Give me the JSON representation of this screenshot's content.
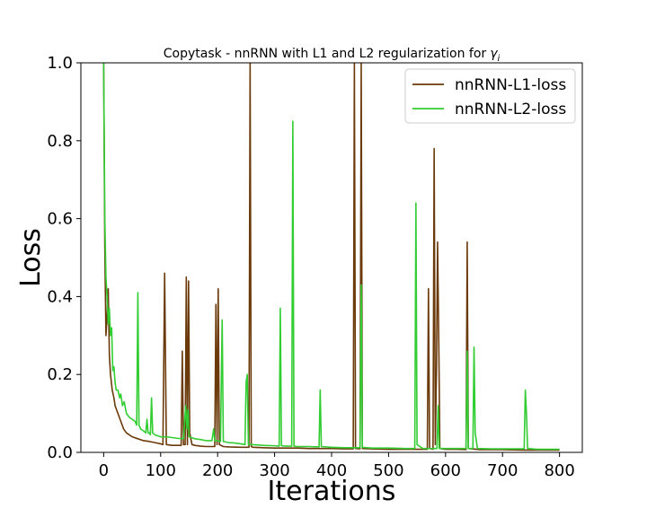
{
  "chart_data": {
    "type": "line",
    "title": "Copytask - nnRNN with L1 and L2 regularization for",
    "title_symbol": "γ",
    "title_subscript": "i",
    "xlabel": "Iterations",
    "ylabel": "Loss",
    "xlim": [
      -40,
      840
    ],
    "ylim": [
      0.0,
      1.0
    ],
    "x_ticks": [
      0,
      100,
      200,
      300,
      400,
      500,
      600,
      700,
      800
    ],
    "y_ticks": [
      0.0,
      0.2,
      0.4,
      0.6,
      0.8,
      1.0
    ],
    "x_tick_labels": [
      "0",
      "100",
      "200",
      "300",
      "400",
      "500",
      "600",
      "700",
      "800"
    ],
    "y_tick_labels": [
      "0.0",
      "0.2",
      "0.4",
      "0.6",
      "0.8",
      "1.0"
    ],
    "grid": false,
    "legend_position": "top-right",
    "series": [
      {
        "name": "nnRNN-L1-loss",
        "color": "#6b3a0a",
        "points": [
          [
            0,
            1.0
          ],
          [
            2,
            0.53
          ],
          [
            4,
            0.3
          ],
          [
            6,
            0.35
          ],
          [
            8,
            0.42
          ],
          [
            10,
            0.25
          ],
          [
            12,
            0.2
          ],
          [
            15,
            0.16
          ],
          [
            18,
            0.14
          ],
          [
            20,
            0.12
          ],
          [
            25,
            0.1
          ],
          [
            30,
            0.08
          ],
          [
            35,
            0.06
          ],
          [
            40,
            0.05
          ],
          [
            50,
            0.04
          ],
          [
            60,
            0.035
          ],
          [
            70,
            0.03
          ],
          [
            80,
            0.028
          ],
          [
            90,
            0.025
          ],
          [
            100,
            0.022
          ],
          [
            104,
            0.02
          ],
          [
            107,
            0.46
          ],
          [
            110,
            0.02
          ],
          [
            120,
            0.018
          ],
          [
            130,
            0.018
          ],
          [
            136,
            0.018
          ],
          [
            138,
            0.26
          ],
          [
            140,
            0.02
          ],
          [
            143,
            0.02
          ],
          [
            145,
            0.45
          ],
          [
            147,
            0.02
          ],
          [
            149,
            0.44
          ],
          [
            151,
            0.05
          ],
          [
            155,
            0.02
          ],
          [
            160,
            0.018
          ],
          [
            170,
            0.016
          ],
          [
            180,
            0.015
          ],
          [
            190,
            0.015
          ],
          [
            195,
            0.015
          ],
          [
            197,
            0.38
          ],
          [
            199,
            0.02
          ],
          [
            201,
            0.42
          ],
          [
            203,
            0.02
          ],
          [
            210,
            0.015
          ],
          [
            220,
            0.014
          ],
          [
            240,
            0.013
          ],
          [
            250,
            0.013
          ],
          [
            255,
            0.013
          ],
          [
            257,
            1.0
          ],
          [
            259,
            0.015
          ],
          [
            262,
            0.013
          ],
          [
            280,
            0.012
          ],
          [
            300,
            0.011
          ],
          [
            320,
            0.011
          ],
          [
            340,
            0.011
          ],
          [
            360,
            0.01
          ],
          [
            380,
            0.01
          ],
          [
            400,
            0.01
          ],
          [
            420,
            0.009
          ],
          [
            438,
            0.009
          ],
          [
            440,
            1.0
          ],
          [
            442,
            0.01
          ],
          [
            450,
            0.009
          ],
          [
            452,
            1.0
          ],
          [
            454,
            0.01
          ],
          [
            470,
            0.009
          ],
          [
            500,
            0.008
          ],
          [
            530,
            0.008
          ],
          [
            560,
            0.008
          ],
          [
            568,
            0.008
          ],
          [
            570,
            0.42
          ],
          [
            572,
            0.01
          ],
          [
            578,
            0.008
          ],
          [
            580,
            0.78
          ],
          [
            582,
            0.02
          ],
          [
            584,
            0.2
          ],
          [
            586,
            0.54
          ],
          [
            588,
            0.3
          ],
          [
            590,
            0.01
          ],
          [
            600,
            0.008
          ],
          [
            620,
            0.008
          ],
          [
            636,
            0.007
          ],
          [
            638,
            0.54
          ],
          [
            640,
            0.01
          ],
          [
            660,
            0.007
          ],
          [
            700,
            0.007
          ],
          [
            740,
            0.006
          ],
          [
            760,
            0.006
          ],
          [
            800,
            0.006
          ]
        ]
      },
      {
        "name": "nnRNN-L2-loss",
        "color": "#32cd32",
        "points": [
          [
            0,
            1.0
          ],
          [
            2,
            0.6
          ],
          [
            4,
            0.45
          ],
          [
            6,
            0.4
          ],
          [
            8,
            0.33
          ],
          [
            10,
            0.37
          ],
          [
            12,
            0.3
          ],
          [
            14,
            0.32
          ],
          [
            16,
            0.21
          ],
          [
            18,
            0.22
          ],
          [
            20,
            0.18
          ],
          [
            22,
            0.16
          ],
          [
            25,
            0.16
          ],
          [
            28,
            0.14
          ],
          [
            30,
            0.15
          ],
          [
            33,
            0.12
          ],
          [
            36,
            0.13
          ],
          [
            40,
            0.1
          ],
          [
            45,
            0.09
          ],
          [
            50,
            0.085
          ],
          [
            55,
            0.08
          ],
          [
            58,
            0.07
          ],
          [
            60,
            0.41
          ],
          [
            62,
            0.07
          ],
          [
            65,
            0.06
          ],
          [
            70,
            0.055
          ],
          [
            74,
            0.05
          ],
          [
            76,
            0.085
          ],
          [
            78,
            0.05
          ],
          [
            80,
            0.05
          ],
          [
            82,
            0.045
          ],
          [
            84,
            0.14
          ],
          [
            86,
            0.05
          ],
          [
            90,
            0.045
          ],
          [
            100,
            0.04
          ],
          [
            110,
            0.04
          ],
          [
            120,
            0.038
          ],
          [
            130,
            0.036
          ],
          [
            140,
            0.035
          ],
          [
            144,
            0.12
          ],
          [
            146,
            0.06
          ],
          [
            148,
            0.11
          ],
          [
            150,
            0.04
          ],
          [
            160,
            0.035
          ],
          [
            170,
            0.033
          ],
          [
            180,
            0.03
          ],
          [
            190,
            0.03
          ],
          [
            193,
            0.06
          ],
          [
            195,
            0.03
          ],
          [
            200,
            0.03
          ],
          [
            205,
            0.028
          ],
          [
            208,
            0.34
          ],
          [
            210,
            0.028
          ],
          [
            220,
            0.025
          ],
          [
            230,
            0.024
          ],
          [
            240,
            0.022
          ],
          [
            248,
            0.02
          ],
          [
            250,
            0.18
          ],
          [
            252,
            0.2
          ],
          [
            254,
            0.02
          ],
          [
            260,
            0.02
          ],
          [
            280,
            0.018
          ],
          [
            300,
            0.017
          ],
          [
            308,
            0.016
          ],
          [
            310,
            0.37
          ],
          [
            312,
            0.017
          ],
          [
            320,
            0.016
          ],
          [
            330,
            0.016
          ],
          [
            332,
            0.85
          ],
          [
            334,
            0.016
          ],
          [
            340,
            0.015
          ],
          [
            360,
            0.015
          ],
          [
            378,
            0.014
          ],
          [
            380,
            0.16
          ],
          [
            382,
            0.015
          ],
          [
            400,
            0.013
          ],
          [
            420,
            0.012
          ],
          [
            440,
            0.012
          ],
          [
            450,
            0.012
          ],
          [
            452,
            0.43
          ],
          [
            454,
            0.013
          ],
          [
            470,
            0.011
          ],
          [
            500,
            0.011
          ],
          [
            530,
            0.01
          ],
          [
            546,
            0.01
          ],
          [
            548,
            0.64
          ],
          [
            550,
            0.02
          ],
          [
            560,
            0.01
          ],
          [
            580,
            0.01
          ],
          [
            585,
            0.01
          ],
          [
            587,
            0.12
          ],
          [
            589,
            0.01
          ],
          [
            600,
            0.01
          ],
          [
            620,
            0.01
          ],
          [
            636,
            0.01
          ],
          [
            638,
            0.26
          ],
          [
            640,
            0.01
          ],
          [
            648,
            0.01
          ],
          [
            650,
            0.27
          ],
          [
            652,
            0.05
          ],
          [
            656,
            0.01
          ],
          [
            680,
            0.009
          ],
          [
            700,
            0.009
          ],
          [
            720,
            0.009
          ],
          [
            738,
            0.009
          ],
          [
            740,
            0.16
          ],
          [
            742,
            0.1
          ],
          [
            744,
            0.01
          ],
          [
            760,
            0.008
          ],
          [
            800,
            0.008
          ]
        ]
      }
    ]
  }
}
